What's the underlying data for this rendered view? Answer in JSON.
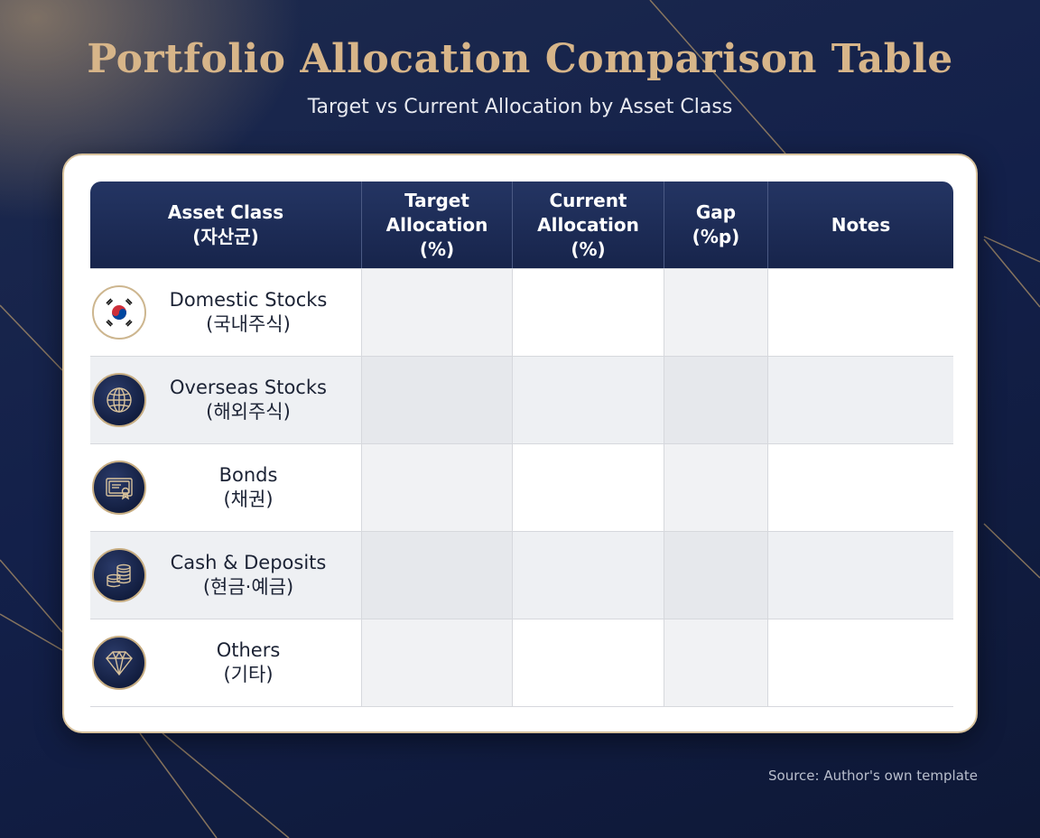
{
  "title": "Portfolio Allocation Comparison Table",
  "subtitle": "Target vs Current Allocation by Asset Class",
  "table": {
    "headers": [
      "Asset Class\n(자산군)",
      "Target\nAllocation\n(%)",
      "Current\nAllocation\n(%)",
      "Gap\n(%p)",
      "Notes"
    ],
    "rows": [
      {
        "name": "Domestic Stocks",
        "name_ko": "(국내주식)",
        "icon": "korea-flag-icon",
        "target": "",
        "current": "",
        "gap": "",
        "notes": ""
      },
      {
        "name": "Overseas Stocks",
        "name_ko": "(해외주식)",
        "icon": "globe-icon",
        "target": "",
        "current": "",
        "gap": "",
        "notes": ""
      },
      {
        "name": "Bonds",
        "name_ko": "(채권)",
        "icon": "certificate-icon",
        "target": "",
        "current": "",
        "gap": "",
        "notes": ""
      },
      {
        "name": "Cash & Deposits",
        "name_ko": "(현금·예금)",
        "icon": "coin-stack-icon",
        "target": "",
        "current": "",
        "gap": "",
        "notes": ""
      },
      {
        "name": "Others",
        "name_ko": "(기타)",
        "icon": "diamond-icon",
        "target": "",
        "current": "",
        "gap": "",
        "notes": ""
      }
    ]
  },
  "source": "Source: Author's own template",
  "colors": {
    "title_gold": "#d7b589",
    "header_navy": "#1d2b57",
    "background_navy": "#13204a",
    "border_gold": "#d8c29c"
  }
}
